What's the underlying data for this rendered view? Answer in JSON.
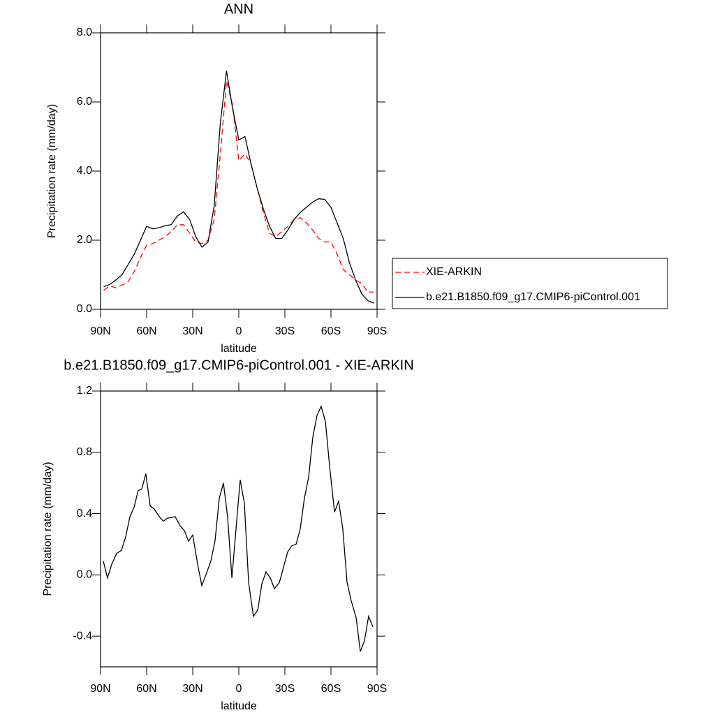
{
  "chart_data": [
    {
      "type": "line",
      "title": "ANN",
      "x_label": "latitude",
      "y_label": "Precipitation rate (mm/day)",
      "x": [
        88,
        84,
        80,
        76,
        72,
        68,
        64,
        60,
        56,
        52,
        48,
        44,
        40,
        36,
        32,
        28,
        24,
        20,
        16,
        12,
        8,
        4,
        0,
        -4,
        -8,
        -12,
        -16,
        -20,
        -24,
        -28,
        -32,
        -36,
        -40,
        -44,
        -48,
        -52,
        -56,
        -60,
        -64,
        -68,
        -72,
        -76,
        -80,
        -84,
        -88
      ],
      "xlim": [
        90,
        -90
      ],
      "xticks": [
        {
          "value": 90,
          "label": "90N"
        },
        {
          "value": 60,
          "label": "60N"
        },
        {
          "value": 30,
          "label": "30N"
        },
        0,
        {
          "value": -30,
          "label": "30S"
        },
        {
          "value": -60,
          "label": "60S"
        },
        {
          "value": -90,
          "label": "90S"
        }
      ],
      "ylim": [
        0,
        8
      ],
      "yticks": [
        {
          "value": 0,
          "label": "0.0"
        },
        {
          "value": 2,
          "label": "2.0"
        },
        {
          "value": 4,
          "label": "4.0"
        },
        {
          "value": 6,
          "label": "6.0"
        },
        {
          "value": 8,
          "label": "8.0"
        }
      ],
      "legend": "right",
      "series": [
        {
          "name": "XIE-ARKIN",
          "color": "#ff0000",
          "dash": "dashed",
          "values": [
            0.55,
            0.68,
            0.62,
            0.7,
            0.8,
            1.1,
            1.5,
            1.85,
            1.9,
            2.0,
            2.1,
            2.25,
            2.45,
            2.45,
            2.2,
            1.95,
            1.9,
            2.0,
            2.6,
            4.5,
            6.6,
            5.9,
            4.3,
            4.5,
            4.2,
            3.5,
            2.8,
            2.2,
            2.1,
            2.25,
            2.4,
            2.6,
            2.65,
            2.5,
            2.3,
            2.05,
            1.95,
            1.95,
            1.6,
            1.15,
            1.0,
            0.85,
            0.75,
            0.5,
            0.5
          ]
        },
        {
          "name": "b.e21.B1850.f09_g17.CMIP6-piControl.001",
          "color": "#000000",
          "dash": "solid",
          "values": [
            0.65,
            0.72,
            0.85,
            1.0,
            1.3,
            1.6,
            2.0,
            2.4,
            2.33,
            2.36,
            2.42,
            2.45,
            2.7,
            2.82,
            2.6,
            2.1,
            1.8,
            1.95,
            3.0,
            5.4,
            6.9,
            5.8,
            4.9,
            5.0,
            4.2,
            3.5,
            2.9,
            2.4,
            2.05,
            2.05,
            2.3,
            2.6,
            2.8,
            2.95,
            3.1,
            3.2,
            3.18,
            2.95,
            2.5,
            2.05,
            1.35,
            0.85,
            0.45,
            0.25,
            0.18
          ]
        }
      ]
    },
    {
      "type": "line",
      "title": "b.e21.B1850.f09_g17.CMIP6-piControl.001 - XIE-ARKIN",
      "x_label": "latitude",
      "y_label": "Precipitation rate (mm/day)",
      "x": [
        88.2,
        85.5,
        82.7,
        79.5,
        76.4,
        73.6,
        70.9,
        68.2,
        65.5,
        63.2,
        60.5,
        57.7,
        55,
        51.8,
        49.1,
        46.4,
        41.4,
        38.2,
        35.5,
        32.7,
        30,
        26.8,
        24.1,
        21.4,
        18.2,
        15.5,
        12.7,
        10,
        7.3,
        4.5,
        1.8,
        -0.9,
        -3.6,
        -6.4,
        -9.5,
        -12.3,
        -15,
        -17.7,
        -20.5,
        -23.2,
        -26.4,
        -29.1,
        -31.8,
        -34.5,
        -37.3,
        -40,
        -42.7,
        -45.5,
        -48.2,
        -50.9,
        -53.6,
        -56.4,
        -59.1,
        -62.3,
        -65,
        -67.7,
        -70.5,
        -73.2,
        -76.4,
        -79.1,
        -81.8,
        -84.5,
        -87.3
      ],
      "xlim": [
        90,
        -90
      ],
      "xticks": [
        {
          "value": 90,
          "label": "90N"
        },
        {
          "value": 60,
          "label": "60N"
        },
        {
          "value": 30,
          "label": "30N"
        },
        0,
        {
          "value": -30,
          "label": "30S"
        },
        {
          "value": -60,
          "label": "60S"
        },
        {
          "value": -90,
          "label": "90S"
        }
      ],
      "ylim": [
        -0.6,
        1.2
      ],
      "yticks": [
        {
          "value": -0.4,
          "label": "-0.4"
        },
        {
          "value": 0,
          "label": "0.0"
        },
        {
          "value": 0.4,
          "label": "0.4"
        },
        {
          "value": 0.8,
          "label": "0.8"
        },
        {
          "value": 1.2,
          "label": "1.2"
        }
      ],
      "series": [
        {
          "color": "#000000",
          "dash": "solid",
          "values": [
            0.09,
            -0.02,
            0.07,
            0.14,
            0.16,
            0.25,
            0.38,
            0.44,
            0.55,
            0.56,
            0.66,
            0.45,
            0.43,
            0.38,
            0.35,
            0.37,
            0.38,
            0.32,
            0.29,
            0.22,
            0.26,
            0.07,
            -0.07,
            0.0,
            0.09,
            0.22,
            0.5,
            0.6,
            0.38,
            -0.02,
            0.3,
            0.62,
            0.47,
            -0.05,
            -0.27,
            -0.23,
            -0.06,
            0.02,
            -0.02,
            -0.09,
            -0.05,
            0.05,
            0.15,
            0.19,
            0.2,
            0.3,
            0.5,
            0.64,
            0.9,
            1.04,
            1.1,
            1.0,
            0.71,
            0.41,
            0.48,
            0.3,
            -0.05,
            -0.17,
            -0.28,
            -0.5,
            -0.43,
            -0.27,
            -0.34
          ]
        }
      ]
    }
  ]
}
